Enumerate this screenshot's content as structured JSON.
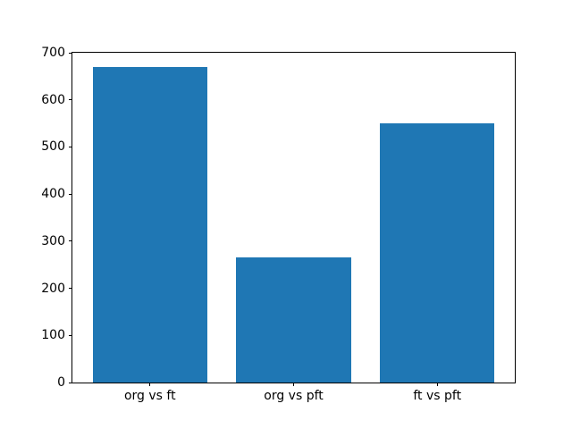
{
  "figure": {
    "background": "#ffffff"
  },
  "chart_data": {
    "type": "bar",
    "categories": [
      "org vs ft",
      "org vs pft",
      "ft vs pft"
    ],
    "values": [
      670,
      265,
      550
    ],
    "title": "",
    "xlabel": "",
    "ylabel": "",
    "ylim": [
      0,
      700
    ],
    "xlim": [
      -0.54,
      2.54
    ],
    "yticks": [
      0,
      100,
      200,
      300,
      400,
      500,
      600,
      700
    ],
    "bar_width": 0.8,
    "bar_color": "#1f77b4",
    "axis_color": "#000000",
    "text_color": "#000000",
    "grid": false,
    "legend": null
  }
}
